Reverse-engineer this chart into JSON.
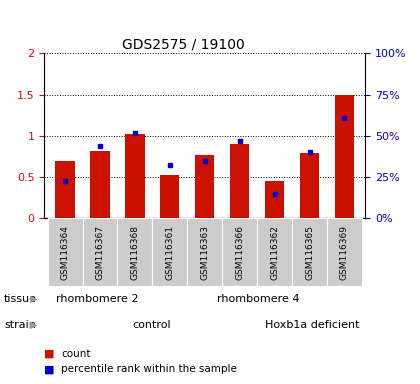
{
  "title": "GDS2575 / 19100",
  "samples": [
    "GSM116364",
    "GSM116367",
    "GSM116368",
    "GSM116361",
    "GSM116363",
    "GSM116366",
    "GSM116362",
    "GSM116365",
    "GSM116369"
  ],
  "red_values": [
    0.7,
    0.82,
    1.02,
    0.53,
    0.77,
    0.9,
    0.46,
    0.79,
    1.5
  ],
  "blue_values": [
    0.46,
    0.88,
    1.04,
    0.65,
    0.7,
    0.94,
    0.3,
    0.8,
    1.22
  ],
  "ylim_left": [
    0,
    2
  ],
  "ylim_right": [
    0,
    100
  ],
  "yticks_left": [
    0,
    0.5,
    1.0,
    1.5,
    2.0
  ],
  "yticks_right": [
    0,
    25,
    50,
    75,
    100
  ],
  "ytick_labels_left": [
    "0",
    "0.5",
    "1",
    "1.5",
    "2"
  ],
  "ytick_labels_right": [
    "0%",
    "25%",
    "50%",
    "75%",
    "100%"
  ],
  "bar_color": "#cc1100",
  "dot_color": "#0000cc",
  "tissue_groups": [
    {
      "label": "rhombomere 2",
      "start": 0,
      "end": 3,
      "color": "#88ee88"
    },
    {
      "label": "rhombomere 4",
      "start": 3,
      "end": 9,
      "color": "#44dd44"
    }
  ],
  "strain_groups": [
    {
      "label": "control",
      "start": 0,
      "end": 6,
      "color": "#ffaaff"
    },
    {
      "label": "Hoxb1a deficient",
      "start": 6,
      "end": 9,
      "color": "#ee66ee"
    }
  ],
  "tissue_label": "tissue",
  "strain_label": "strain",
  "legend_count": "count",
  "legend_pct": "percentile rank within the sample",
  "bar_width": 0.55
}
